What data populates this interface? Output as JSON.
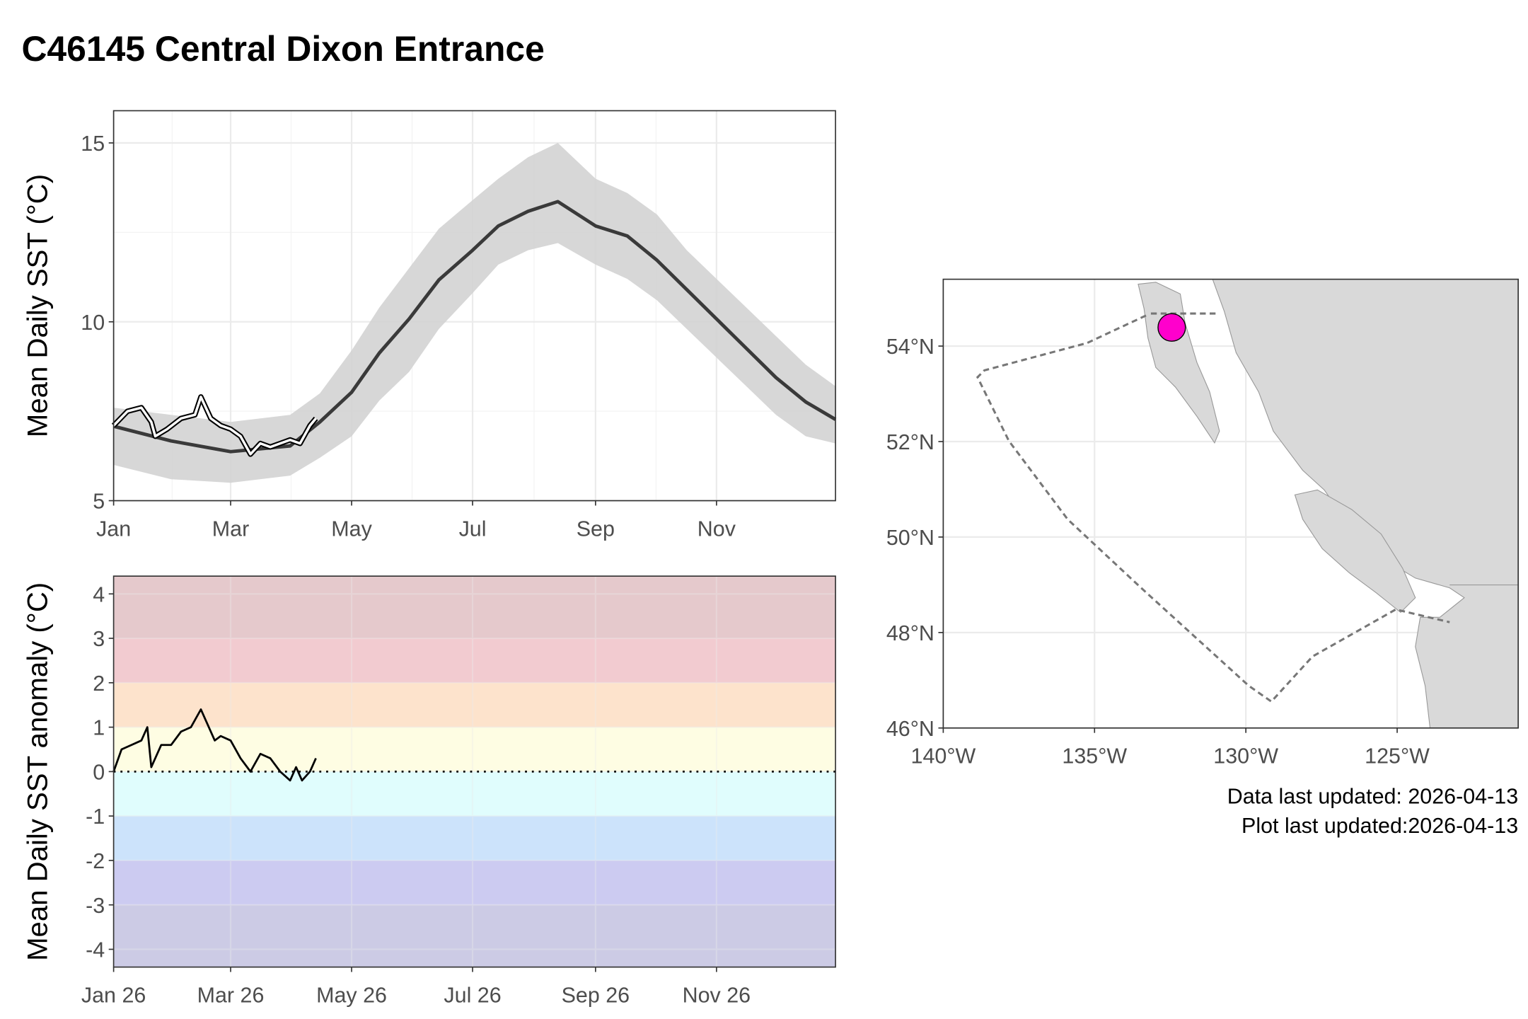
{
  "title": "C46145 Central Dixon Entrance",
  "notes": [
    "Data last updated: 2026-04-13",
    "Plot last updated:2026-04-13"
  ],
  "chart_data": [
    {
      "type": "line",
      "y_label": "Mean Daily SST (°C)",
      "xlim": [
        1,
        365
      ],
      "xticks": [
        {
          "value": 1,
          "label": "Jan"
        },
        {
          "value": 60,
          "label": "Mar"
        },
        {
          "value": 121,
          "label": "May"
        },
        {
          "value": 182,
          "label": "Jul"
        },
        {
          "value": 244,
          "label": "Sep"
        },
        {
          "value": 305,
          "label": "Nov"
        }
      ],
      "ylim": [
        5,
        15.9
      ],
      "yticks": [
        5,
        10,
        15
      ],
      "grid": true,
      "x": [
        1,
        30,
        60,
        90,
        105,
        121,
        135,
        150,
        165,
        182,
        195,
        210,
        225,
        244,
        260,
        275,
        290,
        305,
        320,
        335,
        350,
        365
      ],
      "series": [
        {
          "color": "#3a3a3a",
          "values": [
            7.08,
            6.67,
            6.37,
            6.53,
            7.2,
            8.03,
            9.13,
            10.08,
            11.17,
            12.0,
            12.68,
            13.09,
            13.36,
            12.68,
            12.4,
            11.72,
            10.9,
            10.08,
            9.26,
            8.44,
            7.76,
            7.27
          ]
        }
      ],
      "band": {
        "color": "#d3d3d3",
        "lower": [
          6.0,
          5.6,
          5.5,
          5.7,
          6.2,
          6.8,
          7.8,
          8.6,
          9.8,
          10.8,
          11.6,
          12.0,
          12.2,
          11.6,
          11.2,
          10.6,
          9.8,
          9.0,
          8.2,
          7.4,
          6.8,
          6.6
        ],
        "upper": [
          7.6,
          7.4,
          7.2,
          7.4,
          8.0,
          9.2,
          10.4,
          11.5,
          12.6,
          13.4,
          14.0,
          14.6,
          15.0,
          14.0,
          13.6,
          13.0,
          12.0,
          11.2,
          10.4,
          9.6,
          8.8,
          8.2
        ]
      },
      "current": {
        "color": "#ffffff",
        "x": [
          1,
          8,
          15,
          20,
          22,
          28,
          35,
          42,
          45,
          50,
          55,
          60,
          65,
          70,
          75,
          80,
          85,
          90,
          95,
          100,
          103
        ],
        "values": [
          7.1,
          7.5,
          7.6,
          7.2,
          6.8,
          7.0,
          7.3,
          7.4,
          7.9,
          7.3,
          7.1,
          7.0,
          6.8,
          6.3,
          6.6,
          6.5,
          6.6,
          6.7,
          6.6,
          7.1,
          7.3
        ]
      }
    },
    {
      "type": "line",
      "y_label": "Mean Daily SST anomaly (°C)",
      "xlim": [
        1,
        365
      ],
      "xticks": [
        {
          "value": 1,
          "label": "Jan 26"
        },
        {
          "value": 60,
          "label": "Mar 26"
        },
        {
          "value": 121,
          "label": "May 26"
        },
        {
          "value": 182,
          "label": "Jul 26"
        },
        {
          "value": 244,
          "label": "Sep 26"
        },
        {
          "value": 305,
          "label": "Nov 26"
        }
      ],
      "ylim": [
        -4.4,
        4.4
      ],
      "yticks": [
        -4,
        -3,
        -2,
        -1,
        0,
        1,
        2,
        3,
        4
      ],
      "grid": true,
      "thresholds": [
        -3,
        -2,
        -1,
        0,
        1,
        2,
        3
      ],
      "band_colors": [
        "#cccbe5",
        "#cccbf1",
        "#cce3fb",
        "#e0fdfd",
        "#fefde3",
        "#fde3cc",
        "#f2cbd0",
        "#e5c9cc"
      ],
      "hline": 0,
      "x": [
        1,
        5,
        10,
        15,
        18,
        20,
        25,
        30,
        35,
        40,
        45,
        48,
        52,
        55,
        60,
        65,
        70,
        75,
        80,
        85,
        90,
        93,
        96,
        100,
        103
      ],
      "series": [
        {
          "color": "#000000",
          "values": [
            0,
            0.5,
            0.6,
            0.7,
            1.0,
            0.1,
            0.6,
            0.6,
            0.9,
            1.0,
            1.4,
            1.1,
            0.7,
            0.8,
            0.7,
            0.3,
            0.0,
            0.4,
            0.3,
            0.0,
            -0.2,
            0.1,
            -0.2,
            0.0,
            0.3
          ]
        }
      ]
    },
    {
      "type": "map",
      "xlim": [
        -140,
        -121
      ],
      "xticks": [
        {
          "value": -140,
          "label": "140°W"
        },
        {
          "value": -135,
          "label": "135°W"
        },
        {
          "value": -130,
          "label": "130°W"
        },
        {
          "value": -125,
          "label": "125°W"
        }
      ],
      "ylim": [
        46,
        55.4
      ],
      "yticks": [
        {
          "value": 46,
          "label": "46°N"
        },
        {
          "value": 48,
          "label": "48°N"
        },
        {
          "value": 50,
          "label": "50°N"
        },
        {
          "value": 52,
          "label": "52°N"
        },
        {
          "value": 54,
          "label": "54°N"
        }
      ],
      "grid": true,
      "points": {
        "color": "#ff00cc",
        "lon": [
          -132.45
        ],
        "lat": [
          54.39
        ]
      }
    }
  ]
}
